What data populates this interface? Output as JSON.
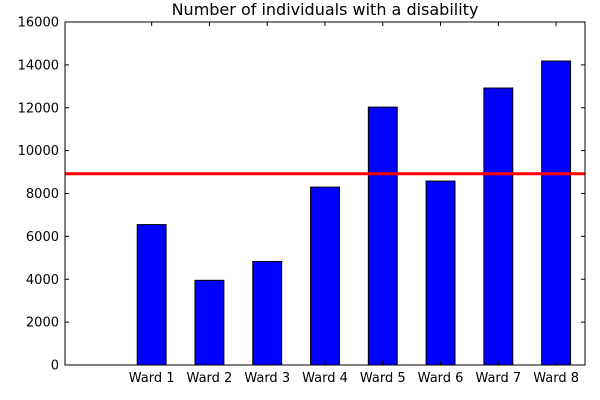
{
  "chart_data": {
    "type": "bar",
    "title": "Number of individuals with a disability",
    "xlabel": "",
    "ylabel": "",
    "categories": [
      "Ward 1",
      "Ward 2",
      "Ward 3",
      "Ward 4",
      "Ward 5",
      "Ward 6",
      "Ward 7",
      "Ward 8"
    ],
    "values": [
      6550,
      3950,
      4830,
      8300,
      12030,
      8580,
      12920,
      14180
    ],
    "ylim": [
      0,
      16000
    ],
    "yticks": [
      0,
      2000,
      4000,
      6000,
      8000,
      10000,
      12000,
      14000,
      16000
    ],
    "reference_line": 8920,
    "bar_color": "#0000ff",
    "reference_line_color": "#ff0000",
    "grid": false
  }
}
